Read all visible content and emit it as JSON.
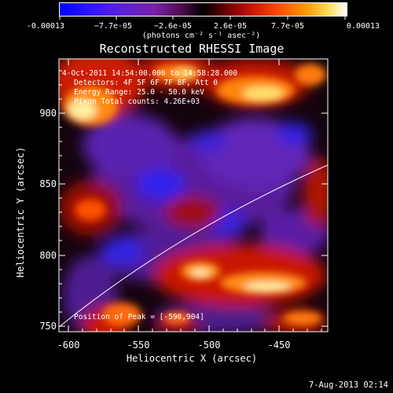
{
  "colorbar": {
    "tick_labels": [
      "-0.00013",
      "−7.7e-05",
      "−2.6e-05",
      "2.6e-05",
      "7.7e-05",
      "0.00013"
    ],
    "units": "(photons cm⁻² s⁻¹ asec⁻²)",
    "range": [
      -0.00013,
      0.00013
    ]
  },
  "title": "Reconstructed RHESSI Image",
  "overlay": {
    "line1": " 4-Oct-2011 14:54:00.000 to 14:58:28.000",
    "line2": "Detectors: 4F 5F 6F 7F 8F, Att 0",
    "line3": "Energy Range: 25.0 - 50.0 keV",
    "line4": "Pixon    Total counts: 4.26E+03",
    "peak": "Position of Peak = [-590,904]"
  },
  "axes": {
    "xlabel": "Heliocentric X (arcsec)",
    "ylabel": "Heliocentric Y (arcsec)",
    "x_ticks": [
      "-600",
      "-550",
      "-500",
      "-450"
    ],
    "y_ticks": [
      "900",
      "850",
      "800",
      "750"
    ],
    "xlim": [
      -607,
      -413
    ],
    "ylim": [
      747,
      943
    ]
  },
  "footer": {
    "date": "7-Aug-2013 02:14"
  }
}
